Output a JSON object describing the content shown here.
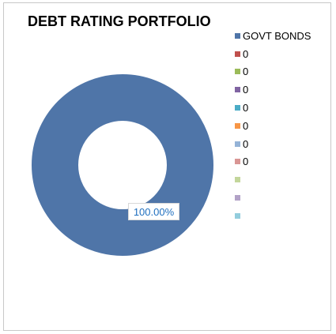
{
  "chart_data": {
    "type": "pie",
    "title": "DEBT RATING PORTFOLIO",
    "donut": true,
    "legend_position": "right",
    "slices": [
      {
        "name": "GOVT BONDS",
        "value": 100,
        "color": "#4f75a8"
      },
      {
        "name": "0",
        "value": 0,
        "color": "#c0504d"
      },
      {
        "name": "0",
        "value": 0,
        "color": "#9bbb59"
      },
      {
        "name": "0",
        "value": 0,
        "color": "#8064a2"
      },
      {
        "name": "0",
        "value": 0,
        "color": "#4bacc6"
      },
      {
        "name": "0",
        "value": 0,
        "color": "#f79646"
      },
      {
        "name": "0",
        "value": 0,
        "color": "#95b3d7"
      },
      {
        "name": "0",
        "value": 0,
        "color": "#d99694"
      },
      {
        "name": "",
        "value": 0,
        "color": "#c3d69b"
      },
      {
        "name": "",
        "value": 0,
        "color": "#b2a2c7"
      },
      {
        "name": "",
        "value": 0,
        "color": "#93cddd"
      }
    ],
    "data_labels": [
      "100.00%"
    ]
  }
}
